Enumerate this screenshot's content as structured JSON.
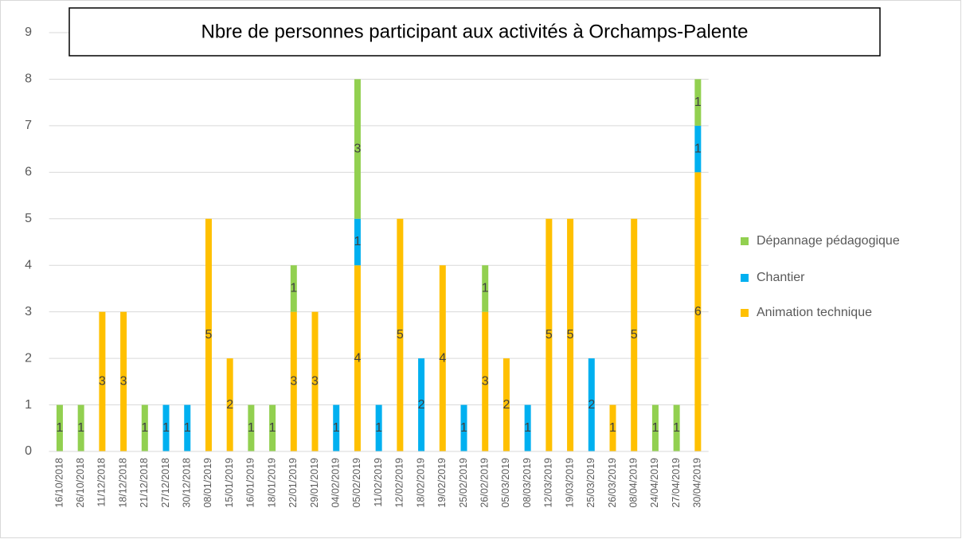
{
  "chart_data": {
    "type": "stacked_bar",
    "title": "Nbre de personnes participant aux activités à Orchamps-Palente",
    "categories": [
      "16/10/2018",
      "26/10/2018",
      "11/12/2018",
      "18/12/2018",
      "21/12/2018",
      "27/12/2018",
      "30/12/2018",
      "08/01/2019",
      "15/01/2019",
      "16/01/2019",
      "18/01/2019",
      "22/01/2019",
      "29/01/2019",
      "04/02/2019",
      "05/02/2019",
      "11/02/2019",
      "12/02/2019",
      "18/02/2019",
      "19/02/2019",
      "25/02/2019",
      "26/02/2019",
      "05/03/2019",
      "08/03/2019",
      "12/03/2019",
      "19/03/2019",
      "25/03/2019",
      "26/03/2019",
      "08/04/2019",
      "24/04/2019",
      "27/04/2019",
      "30/04/2019"
    ],
    "series": [
      {
        "name": "Animation technique",
        "color": "#ffc000",
        "values": [
          null,
          null,
          3,
          3,
          null,
          null,
          null,
          5,
          2,
          null,
          null,
          3,
          3,
          null,
          4,
          null,
          5,
          null,
          4,
          null,
          3,
          2,
          null,
          5,
          5,
          null,
          1,
          5,
          null,
          null,
          6
        ]
      },
      {
        "name": "Chantier",
        "color": "#00b0f0",
        "values": [
          null,
          null,
          null,
          null,
          null,
          1,
          1,
          null,
          null,
          null,
          null,
          null,
          null,
          1,
          1,
          1,
          null,
          2,
          null,
          1,
          null,
          null,
          1,
          null,
          null,
          2,
          null,
          null,
          null,
          null,
          1
        ]
      },
      {
        "name": "Dépannage pédagogique",
        "color": "#92d050",
        "values": [
          1,
          1,
          null,
          null,
          1,
          null,
          null,
          null,
          null,
          1,
          1,
          1,
          null,
          null,
          3,
          null,
          null,
          null,
          null,
          null,
          1,
          null,
          null,
          null,
          null,
          null,
          null,
          null,
          1,
          1,
          1
        ]
      }
    ],
    "ylim": [
      0,
      9
    ],
    "yticks": [
      0,
      1,
      2,
      3,
      4,
      5,
      6,
      7,
      8,
      9
    ],
    "grid": true,
    "legend": "right"
  }
}
